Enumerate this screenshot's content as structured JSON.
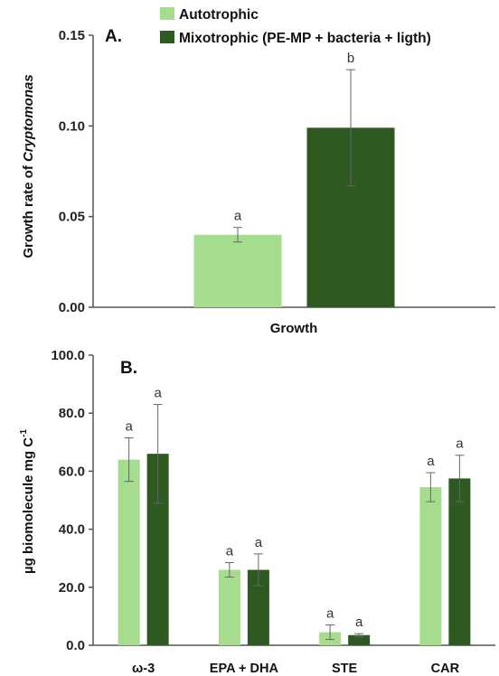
{
  "colors": {
    "autotrophic": "#a6dc8e",
    "mixotrophic": "#2e5a22",
    "axis": "#555555",
    "errorbar": "#666666"
  },
  "legend": {
    "items": [
      {
        "label": "Autotrophic",
        "color": "#a6dc8e"
      },
      {
        "label": "Mixotrophic (PE-MP + bacteria + ligth)",
        "color": "#2e5a22"
      }
    ]
  },
  "chart_data": [
    {
      "type": "bar",
      "panel_label": "A.",
      "ylabel_prefix": "Growth rate of ",
      "ylabel_italic": "Cryptomonas",
      "xlabel": "Growth",
      "categories": [
        ""
      ],
      "ylim": [
        0,
        0.15
      ],
      "yticks": [
        "0.00",
        "0.05",
        "0.10",
        "0.15"
      ],
      "series": [
        {
          "name": "Autotrophic",
          "values": [
            0.04
          ],
          "errors": [
            0.004
          ],
          "letters": [
            "a"
          ]
        },
        {
          "name": "Mixotrophic (PE-MP + bacteria + ligth)",
          "values": [
            0.099
          ],
          "errors": [
            0.032
          ],
          "letters": [
            "b"
          ]
        }
      ]
    },
    {
      "type": "bar",
      "panel_label": "B.",
      "ylabel": "µg biomolecule  mg C",
      "ylabel_sup": "-1",
      "categories": [
        "ω-3",
        "EPA + DHA",
        "STE",
        "CAR"
      ],
      "ylim": [
        0,
        100
      ],
      "yticks": [
        "0.0",
        "20.0",
        "40.0",
        "60.0",
        "80.0",
        "100.0"
      ],
      "series": [
        {
          "name": "Autotrophic",
          "values": [
            64,
            26,
            4.5,
            54.5
          ],
          "errors": [
            7.5,
            2.5,
            2.5,
            5
          ],
          "letters": [
            "a",
            "a",
            "a",
            "a"
          ]
        },
        {
          "name": "Mixotrophic (PE-MP + bacteria + ligth)",
          "values": [
            66,
            26,
            3.5,
            57.5
          ],
          "errors": [
            17,
            5.5,
            0.5,
            8
          ],
          "letters": [
            "a",
            "a",
            "a",
            "a"
          ]
        }
      ]
    }
  ]
}
